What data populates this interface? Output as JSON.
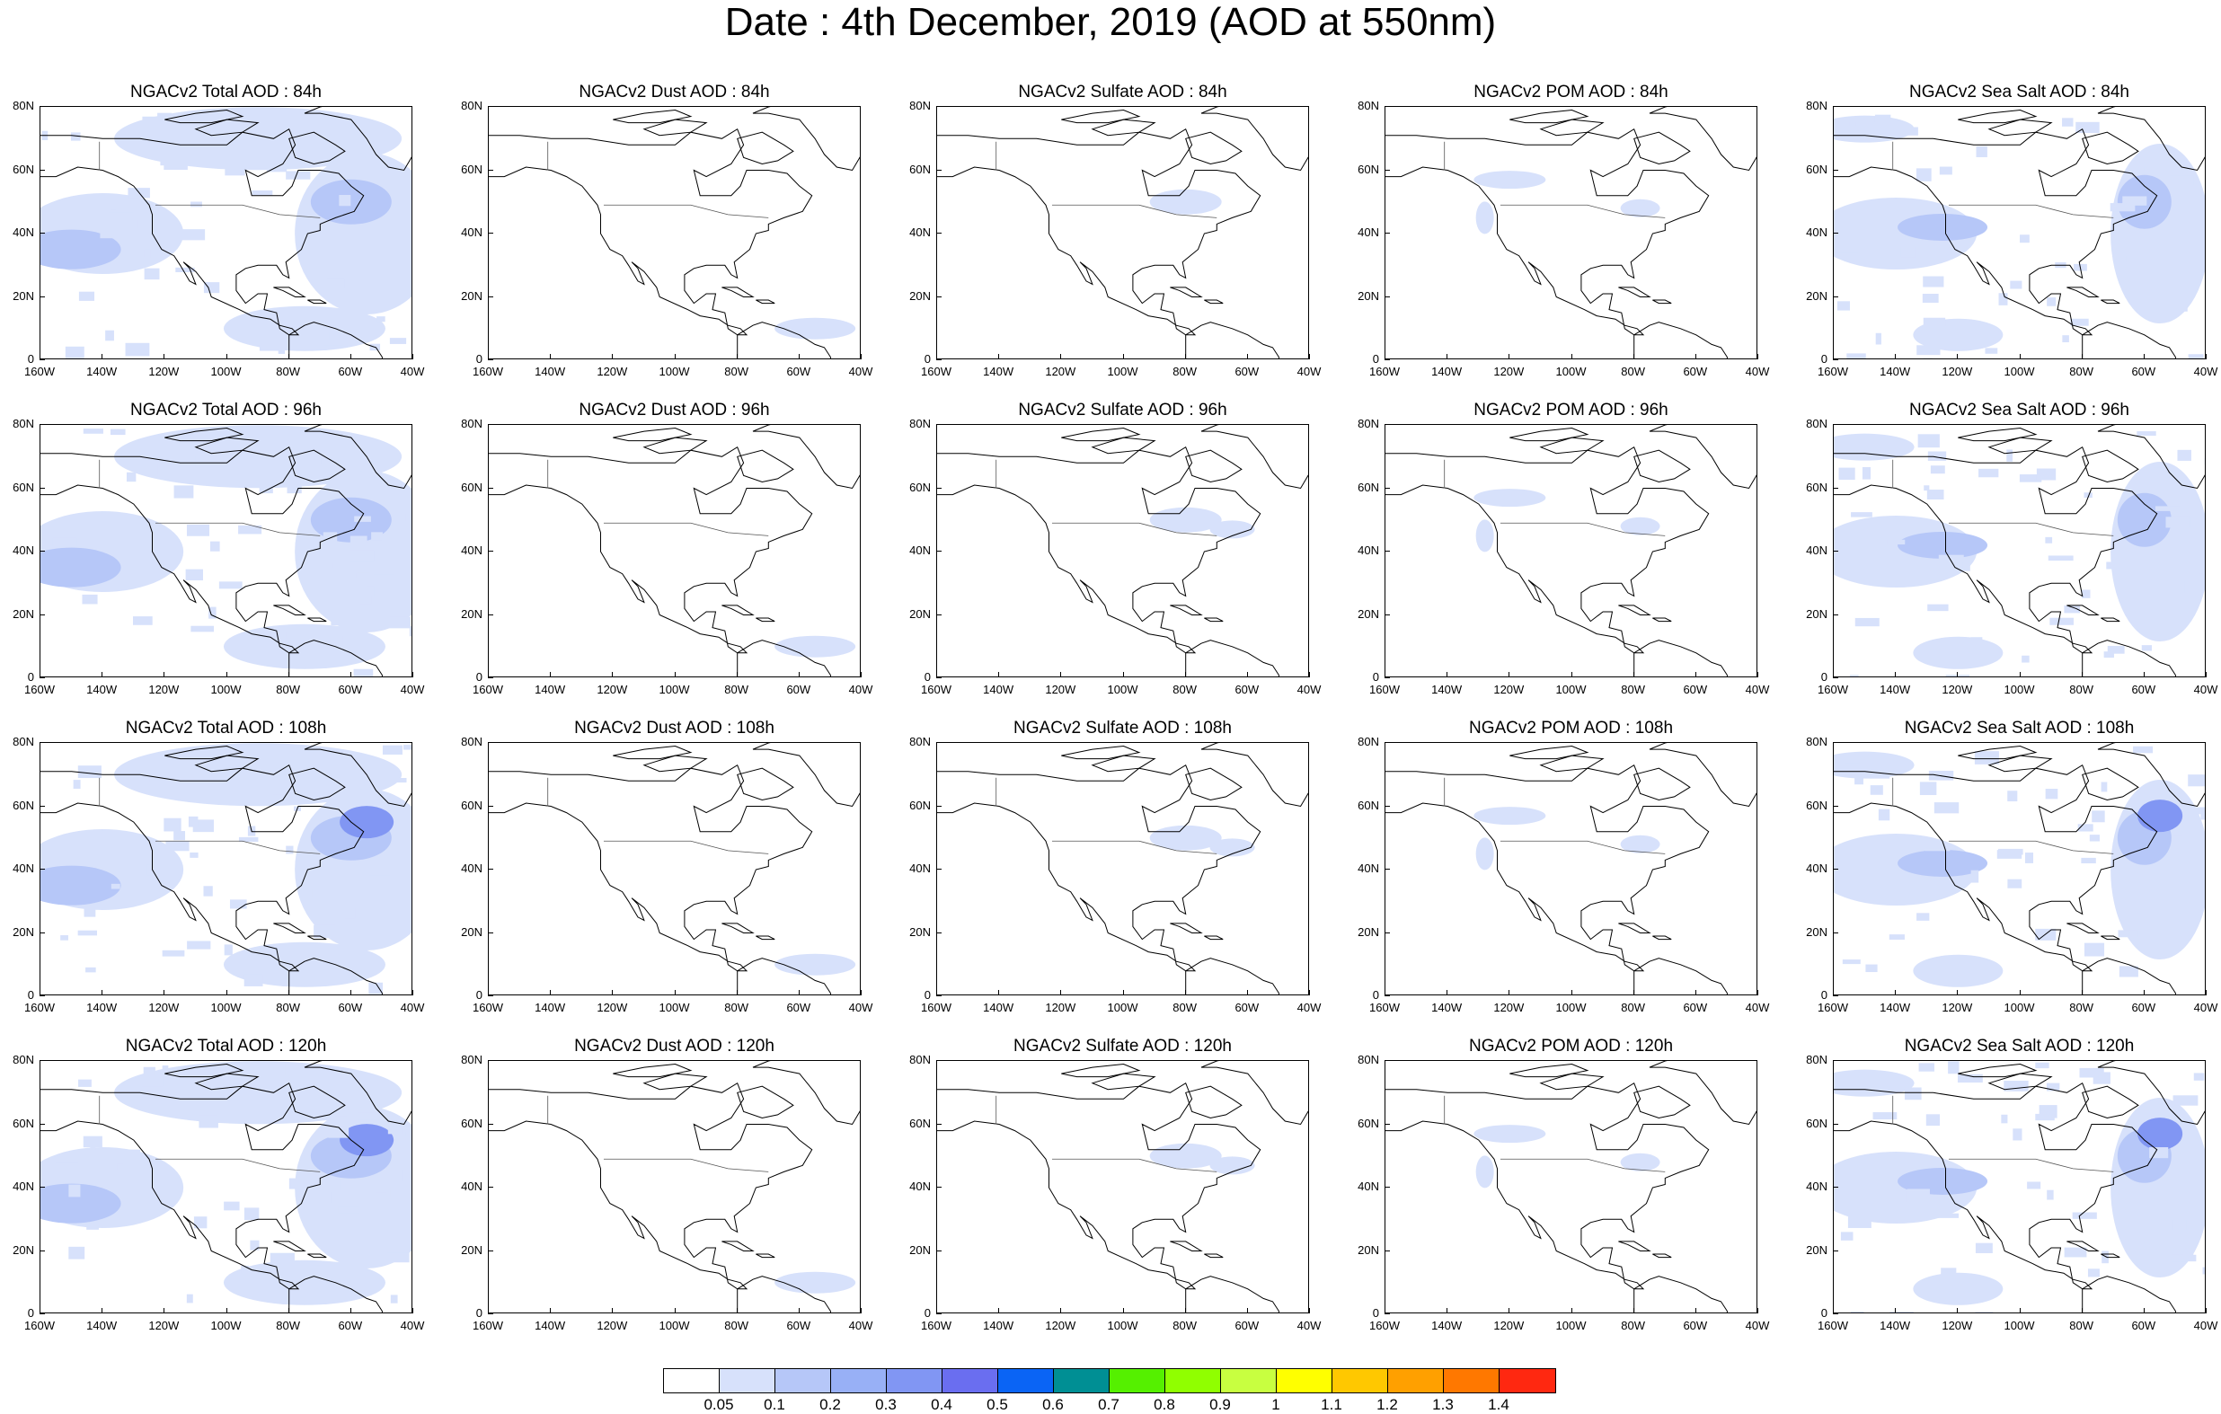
{
  "title": "Date : 4th December, 2019 (AOD at 550nm)",
  "axes": {
    "y_labels": [
      "80N",
      "60N",
      "40N",
      "20N",
      "0"
    ],
    "x_labels": [
      "160W",
      "140W",
      "120W",
      "100W",
      "80W",
      "60W",
      "40W"
    ],
    "lat_range": [
      0,
      80
    ],
    "lon_range": [
      -160,
      -40
    ]
  },
  "panels": [
    [
      "NGACv2 Total AOD : 84h",
      "NGACv2 Dust AOD : 84h",
      "NGACv2 Sulfate AOD : 84h",
      "NGACv2 POM AOD : 84h",
      "NGACv2 Sea Salt AOD : 84h"
    ],
    [
      "NGACv2 Total AOD : 96h",
      "NGACv2 Dust AOD : 96h",
      "NGACv2 Sulfate AOD : 96h",
      "NGACv2 POM AOD : 96h",
      "NGACv2 Sea Salt AOD : 96h"
    ],
    [
      "NGACv2 Total AOD : 108h",
      "NGACv2 Dust AOD : 108h",
      "NGACv2 Sulfate AOD : 108h",
      "NGACv2 POM AOD : 108h",
      "NGACv2 Sea Salt AOD : 108h"
    ],
    [
      "NGACv2 Total AOD : 120h",
      "NGACv2 Dust AOD : 120h",
      "NGACv2 Sulfate AOD : 120h",
      "NGACv2 POM AOD : 120h",
      "NGACv2 Sea Salt  AOD : 120h"
    ]
  ],
  "colorbar": {
    "colors": [
      "#ffffff",
      "#d7e1fb",
      "#b6c7f8",
      "#98b0f6",
      "#8196f3",
      "#6a6ef0",
      "#0a64f5",
      "#008f94",
      "#55f000",
      "#90ff00",
      "#c8ff40",
      "#ffff00",
      "#ffc800",
      "#ffa000",
      "#ff7800",
      "#ff2810"
    ],
    "labels": [
      "0.05",
      "0.1",
      "0.2",
      "0.3",
      "0.4",
      "0.5",
      "0.6",
      "0.7",
      "0.8",
      "0.9",
      "1",
      "1.1",
      "1.2",
      "1.3",
      "1.4"
    ]
  }
}
